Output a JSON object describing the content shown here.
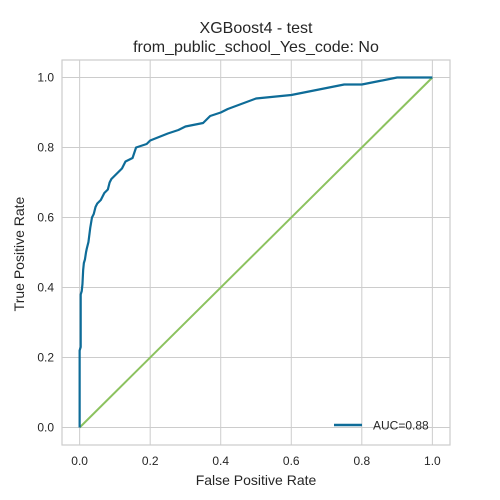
{
  "chart_data": {
    "type": "line",
    "title_line1": "XGBoost4 - test",
    "title_line2": "from_public_school_Yes_code: No",
    "xlabel": "False Positive Rate",
    "ylabel": "True Positive Rate",
    "xlim": [
      -0.05,
      1.05
    ],
    "ylim": [
      -0.05,
      1.05
    ],
    "xticks": [
      "0.0",
      "0.2",
      "0.4",
      "0.6",
      "0.8",
      "1.0"
    ],
    "yticks": [
      "0.0",
      "0.2",
      "0.4",
      "0.6",
      "0.8",
      "1.0"
    ],
    "grid": true,
    "legend_position": "lower-right",
    "series": [
      {
        "name": "AUC=0.88",
        "color": "#0e6c98",
        "x": [
          0.0,
          0.0,
          0.003,
          0.003,
          0.006,
          0.008,
          0.01,
          0.012,
          0.015,
          0.018,
          0.02,
          0.025,
          0.03,
          0.035,
          0.04,
          0.045,
          0.05,
          0.06,
          0.065,
          0.07,
          0.08,
          0.085,
          0.09,
          0.1,
          0.11,
          0.12,
          0.13,
          0.15,
          0.16,
          0.19,
          0.2,
          0.25,
          0.28,
          0.3,
          0.35,
          0.37,
          0.4,
          0.42,
          0.5,
          0.6,
          0.7,
          0.75,
          0.8,
          0.85,
          0.9,
          1.0
        ],
        "y": [
          0.0,
          0.22,
          0.23,
          0.38,
          0.39,
          0.41,
          0.45,
          0.47,
          0.48,
          0.5,
          0.51,
          0.53,
          0.57,
          0.6,
          0.61,
          0.63,
          0.64,
          0.65,
          0.66,
          0.67,
          0.68,
          0.7,
          0.71,
          0.72,
          0.73,
          0.74,
          0.76,
          0.77,
          0.8,
          0.81,
          0.82,
          0.84,
          0.85,
          0.86,
          0.87,
          0.89,
          0.9,
          0.91,
          0.94,
          0.95,
          0.97,
          0.98,
          0.98,
          0.99,
          1.0,
          1.0
        ]
      },
      {
        "name": "",
        "color": "#8cc25f",
        "x": [
          0.0,
          1.0
        ],
        "y": [
          0.0,
          1.0
        ]
      }
    ]
  }
}
